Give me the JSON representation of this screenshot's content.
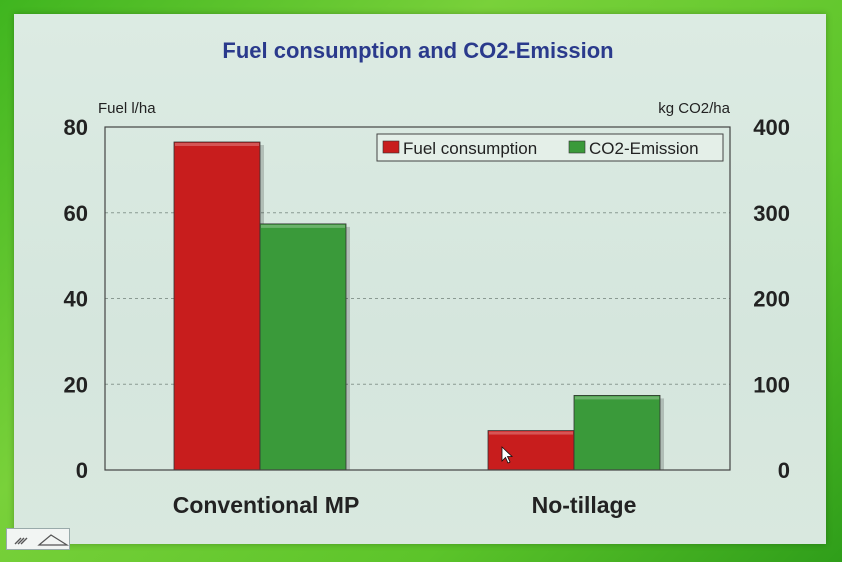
{
  "chart_data": {
    "type": "bar",
    "title": "Fuel consumption and CO2-Emission",
    "categories": [
      "Conventional MP",
      "No-tillage"
    ],
    "y_left": {
      "label": "Fuel l/ha",
      "ylim": [
        0,
        80
      ],
      "ticks": [
        "0",
        "20",
        "40",
        "60",
        "80"
      ]
    },
    "y_right": {
      "label": "kg CO2/ha",
      "ylim": [
        0,
        400
      ],
      "ticks": [
        "0",
        "100",
        "200",
        "300",
        "400"
      ]
    },
    "series": [
      {
        "name": "Fuel consumption",
        "axis": "left",
        "color": "#c81d1d",
        "values": [
          76.5,
          9.2
        ]
      },
      {
        "name": "CO2-Emission",
        "axis": "right",
        "color": "#3a9a3a",
        "values": [
          287,
          87
        ]
      }
    ],
    "grid": "horizontal dashed",
    "legend_position": "top-right"
  },
  "colors": {
    "title": "#2a3a8c",
    "text": "#222222"
  },
  "icons": {
    "cursor": "mouse-pointer-icon",
    "corner": "slide-nav-icon"
  }
}
